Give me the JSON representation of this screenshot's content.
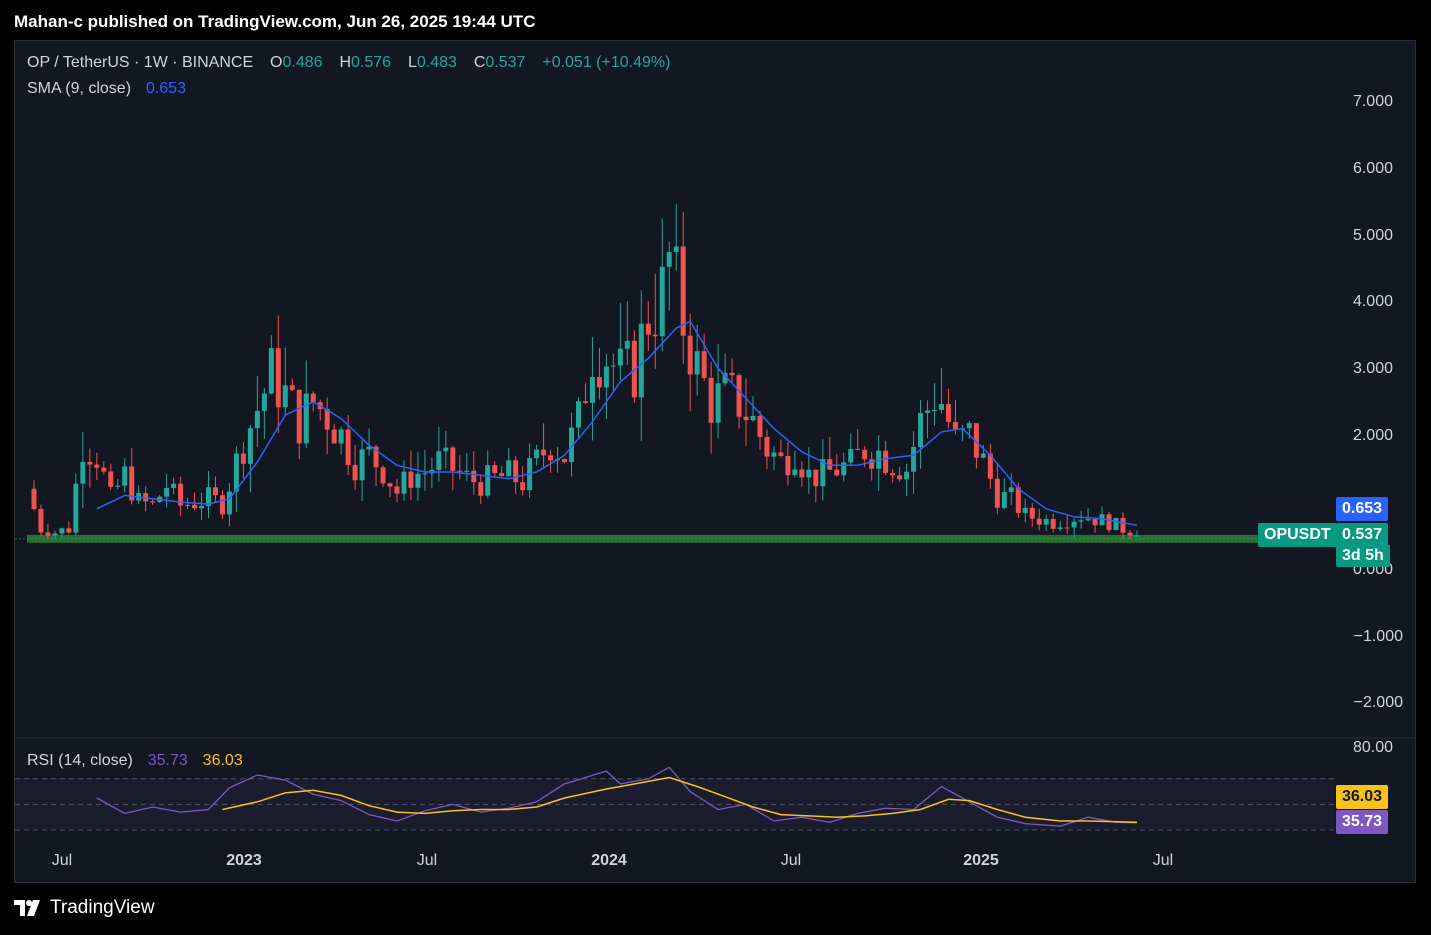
{
  "header": {
    "published_text": "Mahan-c published on TradingView.com, Jun 26, 2025 19:44 UTC"
  },
  "legend": {
    "symbol": "OP / TetherUS · 1W · BINANCE",
    "o_label": "O",
    "o_value": "0.486",
    "h_label": "H",
    "h_value": "0.576",
    "l_label": "L",
    "l_value": "0.483",
    "c_label": "C",
    "c_value": "0.537",
    "change": "+0.051 (+10.49%)",
    "sma_label": "SMA (9, close)",
    "sma_value": "0.653",
    "rsi_label": "RSI (14, close)",
    "rsi_value": "35.73",
    "rsi_ma_value": "36.03"
  },
  "price_axis": [
    "7.000",
    "6.000",
    "5.000",
    "4.000",
    "3.000",
    "2.000",
    "0.000",
    "−1.000",
    "−2.000"
  ],
  "rsi_axis": [
    "80.00"
  ],
  "time_axis": [
    {
      "label": "Jul",
      "bold": false
    },
    {
      "label": "2023",
      "bold": true
    },
    {
      "label": "Jul",
      "bold": false
    },
    {
      "label": "2024",
      "bold": true
    },
    {
      "label": "Jul",
      "bold": false
    },
    {
      "label": "2025",
      "bold": true
    },
    {
      "label": "Jul",
      "bold": false
    }
  ],
  "tags": {
    "sma_tag": "0.653",
    "symbol_tag": "OPUSDT",
    "price_tag": "0.537",
    "countdown_tag": "3d 5h",
    "rsi_ma_tag": "36.03",
    "rsi_tag": "35.73"
  },
  "footer": {
    "brand": "TradingView"
  },
  "colors": {
    "up": "#26a69a",
    "down": "#ef5350",
    "sma": "#2962ff",
    "rsi": "#7e57c2",
    "rsi_ma": "#f7c31a",
    "support": "#2e7d32"
  },
  "chart_data": [
    {
      "type": "candlestick",
      "title": "OP / TetherUS · 1W · BINANCE",
      "ylim": [
        -2.5,
        7.5
      ],
      "y_ticks": [
        -2,
        -1,
        0,
        2,
        3,
        4,
        5,
        6,
        7
      ],
      "x_ticks": [
        "Jul",
        "2023",
        "Jul",
        "2024",
        "Jul",
        "2025",
        "Jul"
      ],
      "support_level": 0.45,
      "close_path": [
        [
          "2022-06-05",
          1.2
        ],
        [
          "2022-06-19",
          0.6
        ],
        [
          "2022-07-03",
          0.55
        ],
        [
          "2022-07-17",
          0.6
        ],
        [
          "2022-07-31",
          1.9
        ],
        [
          "2022-08-14",
          1.7
        ],
        [
          "2022-08-28",
          1.05
        ],
        [
          "2022-09-11",
          1.4
        ],
        [
          "2022-09-25",
          1.0
        ],
        [
          "2022-10-09",
          0.95
        ],
        [
          "2022-10-23",
          1.25
        ],
        [
          "2022-11-06",
          0.95
        ],
        [
          "2022-11-20",
          1.0
        ],
        [
          "2022-12-04",
          1.05
        ],
        [
          "2022-12-18",
          0.98
        ],
        [
          "2023-01-08",
          1.9
        ],
        [
          "2023-01-22",
          2.4
        ],
        [
          "2023-02-05",
          2.9
        ],
        [
          "2023-02-19",
          2.6
        ],
        [
          "2023-03-05",
          2.2
        ],
        [
          "2023-03-19",
          2.5
        ],
        [
          "2023-04-02",
          2.3
        ],
        [
          "2023-04-16",
          2.0
        ],
        [
          "2023-04-30",
          1.6
        ],
        [
          "2023-05-14",
          1.7
        ],
        [
          "2023-05-28",
          1.5
        ],
        [
          "2023-06-11",
          1.15
        ],
        [
          "2023-06-25",
          1.4
        ],
        [
          "2023-07-09",
          1.45
        ],
        [
          "2023-07-23",
          1.6
        ],
        [
          "2023-08-06",
          1.5
        ],
        [
          "2023-08-20",
          1.35
        ],
        [
          "2023-09-03",
          1.3
        ],
        [
          "2023-09-17",
          1.35
        ],
        [
          "2023-10-01",
          1.4
        ],
        [
          "2023-10-15",
          1.3
        ],
        [
          "2023-10-29",
          1.6
        ],
        [
          "2023-11-12",
          1.9
        ],
        [
          "2023-11-26",
          1.7
        ],
        [
          "2023-12-10",
          2.2
        ],
        [
          "2023-12-24",
          3.3
        ],
        [
          "2024-01-07",
          3.2
        ],
        [
          "2024-01-21",
          2.9
        ],
        [
          "2024-02-04",
          3.0
        ],
        [
          "2024-02-18",
          3.8
        ],
        [
          "2024-03-03",
          4.1
        ],
        [
          "2024-03-10",
          4.6
        ],
        [
          "2024-03-24",
          3.7
        ],
        [
          "2024-04-07",
          3.0
        ],
        [
          "2024-04-21",
          2.5
        ],
        [
          "2024-05-05",
          2.6
        ],
        [
          "2024-05-19",
          2.5
        ],
        [
          "2024-06-02",
          2.2
        ],
        [
          "2024-06-16",
          1.8
        ],
        [
          "2024-06-30",
          1.6
        ],
        [
          "2024-07-14",
          1.8
        ],
        [
          "2024-07-28",
          1.4
        ],
        [
          "2024-08-11",
          1.4
        ],
        [
          "2024-08-25",
          1.5
        ],
        [
          "2024-09-08",
          1.55
        ],
        [
          "2024-09-22",
          1.8
        ],
        [
          "2024-10-06",
          1.75
        ],
        [
          "2024-10-20",
          1.6
        ],
        [
          "2024-11-03",
          1.5
        ],
        [
          "2024-11-17",
          2.2
        ],
        [
          "2024-12-01",
          2.6
        ],
        [
          "2024-12-08",
          2.5
        ],
        [
          "2024-12-22",
          1.9
        ],
        [
          "2025-01-05",
          2.0
        ],
        [
          "2025-01-19",
          1.6
        ],
        [
          "2025-02-02",
          1.1
        ],
        [
          "2025-02-16",
          1.05
        ],
        [
          "2025-03-02",
          0.8
        ],
        [
          "2025-03-16",
          0.75
        ],
        [
          "2025-03-30",
          0.7
        ],
        [
          "2025-04-13",
          0.75
        ],
        [
          "2025-04-27",
          0.8
        ],
        [
          "2025-05-11",
          0.75
        ],
        [
          "2025-05-25",
          0.7
        ],
        [
          "2025-06-08",
          0.6
        ],
        [
          "2025-06-22",
          0.537
        ]
      ],
      "sma_path": [
        [
          "2022-08-14",
          0.9
        ],
        [
          "2022-09-11",
          1.1
        ],
        [
          "2022-10-09",
          1.05
        ],
        [
          "2022-11-06",
          1.0
        ],
        [
          "2022-12-04",
          0.97
        ],
        [
          "2022-12-25",
          1.05
        ],
        [
          "2023-01-22",
          1.6
        ],
        [
          "2023-02-19",
          2.3
        ],
        [
          "2023-03-19",
          2.5
        ],
        [
          "2023-04-16",
          2.25
        ],
        [
          "2023-05-14",
          1.85
        ],
        [
          "2023-06-11",
          1.55
        ],
        [
          "2023-07-09",
          1.45
        ],
        [
          "2023-08-06",
          1.45
        ],
        [
          "2023-09-03",
          1.4
        ],
        [
          "2023-10-01",
          1.35
        ],
        [
          "2023-10-29",
          1.45
        ],
        [
          "2023-11-26",
          1.7
        ],
        [
          "2023-12-24",
          2.2
        ],
        [
          "2024-01-21",
          2.8
        ],
        [
          "2024-02-18",
          3.15
        ],
        [
          "2024-03-17",
          3.6
        ],
        [
          "2024-03-31",
          3.7
        ],
        [
          "2024-04-28",
          3.0
        ],
        [
          "2024-05-26",
          2.55
        ],
        [
          "2024-06-23",
          2.1
        ],
        [
          "2024-07-21",
          1.75
        ],
        [
          "2024-08-18",
          1.55
        ],
        [
          "2024-09-15",
          1.55
        ],
        [
          "2024-10-13",
          1.65
        ],
        [
          "2024-11-10",
          1.7
        ],
        [
          "2024-12-08",
          2.05
        ],
        [
          "2024-12-29",
          2.1
        ],
        [
          "2025-01-26",
          1.7
        ],
        [
          "2025-02-23",
          1.2
        ],
        [
          "2025-03-23",
          0.9
        ],
        [
          "2025-04-20",
          0.78
        ],
        [
          "2025-05-18",
          0.75
        ],
        [
          "2025-06-22",
          0.653
        ]
      ]
    },
    {
      "type": "line",
      "title": "RSI (14, close)",
      "ylim": [
        20,
        85
      ],
      "y_ticks": [
        80
      ],
      "levels": [
        70,
        50,
        30
      ],
      "series": [
        {
          "name": "RSI (14, close)",
          "points": [
            [
              "2022-08-14",
              55
            ],
            [
              "2022-09-11",
              43
            ],
            [
              "2022-10-09",
              48
            ],
            [
              "2022-11-06",
              44
            ],
            [
              "2022-12-04",
              46
            ],
            [
              "2022-12-25",
              63
            ],
            [
              "2023-01-22",
              73
            ],
            [
              "2023-02-19",
              69
            ],
            [
              "2023-03-19",
              58
            ],
            [
              "2023-04-16",
              53
            ],
            [
              "2023-05-14",
              42
            ],
            [
              "2023-06-11",
              37
            ],
            [
              "2023-07-09",
              45
            ],
            [
              "2023-08-06",
              50
            ],
            [
              "2023-09-03",
              44
            ],
            [
              "2023-10-01",
              47
            ],
            [
              "2023-10-29",
              52
            ],
            [
              "2023-11-26",
              66
            ],
            [
              "2024-01-07",
              76
            ],
            [
              "2024-01-21",
              66
            ],
            [
              "2024-02-18",
              70
            ],
            [
              "2024-03-10",
              79
            ],
            [
              "2024-03-31",
              60
            ],
            [
              "2024-04-28",
              46
            ],
            [
              "2024-05-26",
              50
            ],
            [
              "2024-06-23",
              37
            ],
            [
              "2024-07-21",
              40
            ],
            [
              "2024-08-18",
              36
            ],
            [
              "2024-09-15",
              43
            ],
            [
              "2024-10-13",
              47
            ],
            [
              "2024-11-10",
              46
            ],
            [
              "2024-12-08",
              64
            ],
            [
              "2025-01-05",
              52
            ],
            [
              "2025-02-02",
              40
            ],
            [
              "2025-03-02",
              35
            ],
            [
              "2025-04-06",
              33
            ],
            [
              "2025-05-04",
              40
            ],
            [
              "2025-06-01",
              36
            ],
            [
              "2025-06-22",
              35.73
            ]
          ]
        },
        {
          "name": "RSI MA",
          "points": [
            [
              "2022-12-18",
              46
            ],
            [
              "2023-01-22",
              52
            ],
            [
              "2023-02-19",
              59
            ],
            [
              "2023-03-19",
              61
            ],
            [
              "2023-04-16",
              57
            ],
            [
              "2023-05-14",
              49
            ],
            [
              "2023-06-11",
              44
            ],
            [
              "2023-07-09",
              43
            ],
            [
              "2023-08-06",
              45
            ],
            [
              "2023-09-03",
              46
            ],
            [
              "2023-10-01",
              46
            ],
            [
              "2023-10-29",
              48
            ],
            [
              "2023-11-26",
              55
            ],
            [
              "2024-01-07",
              62
            ],
            [
              "2024-01-21",
              64
            ],
            [
              "2024-02-18",
              68
            ],
            [
              "2024-03-10",
              71
            ],
            [
              "2024-04-07",
              64
            ],
            [
              "2024-05-05",
              56
            ],
            [
              "2024-06-02",
              48
            ],
            [
              "2024-06-30",
              42
            ],
            [
              "2024-07-28",
              41
            ],
            [
              "2024-08-25",
              40
            ],
            [
              "2024-09-22",
              41
            ],
            [
              "2024-10-20",
              43
            ],
            [
              "2024-11-17",
              46
            ],
            [
              "2024-12-15",
              54
            ],
            [
              "2025-01-05",
              53
            ],
            [
              "2025-02-02",
              46
            ],
            [
              "2025-03-02",
              40
            ],
            [
              "2025-04-06",
              37
            ],
            [
              "2025-05-04",
              37
            ],
            [
              "2025-06-22",
              36.03
            ]
          ]
        }
      ]
    }
  ]
}
